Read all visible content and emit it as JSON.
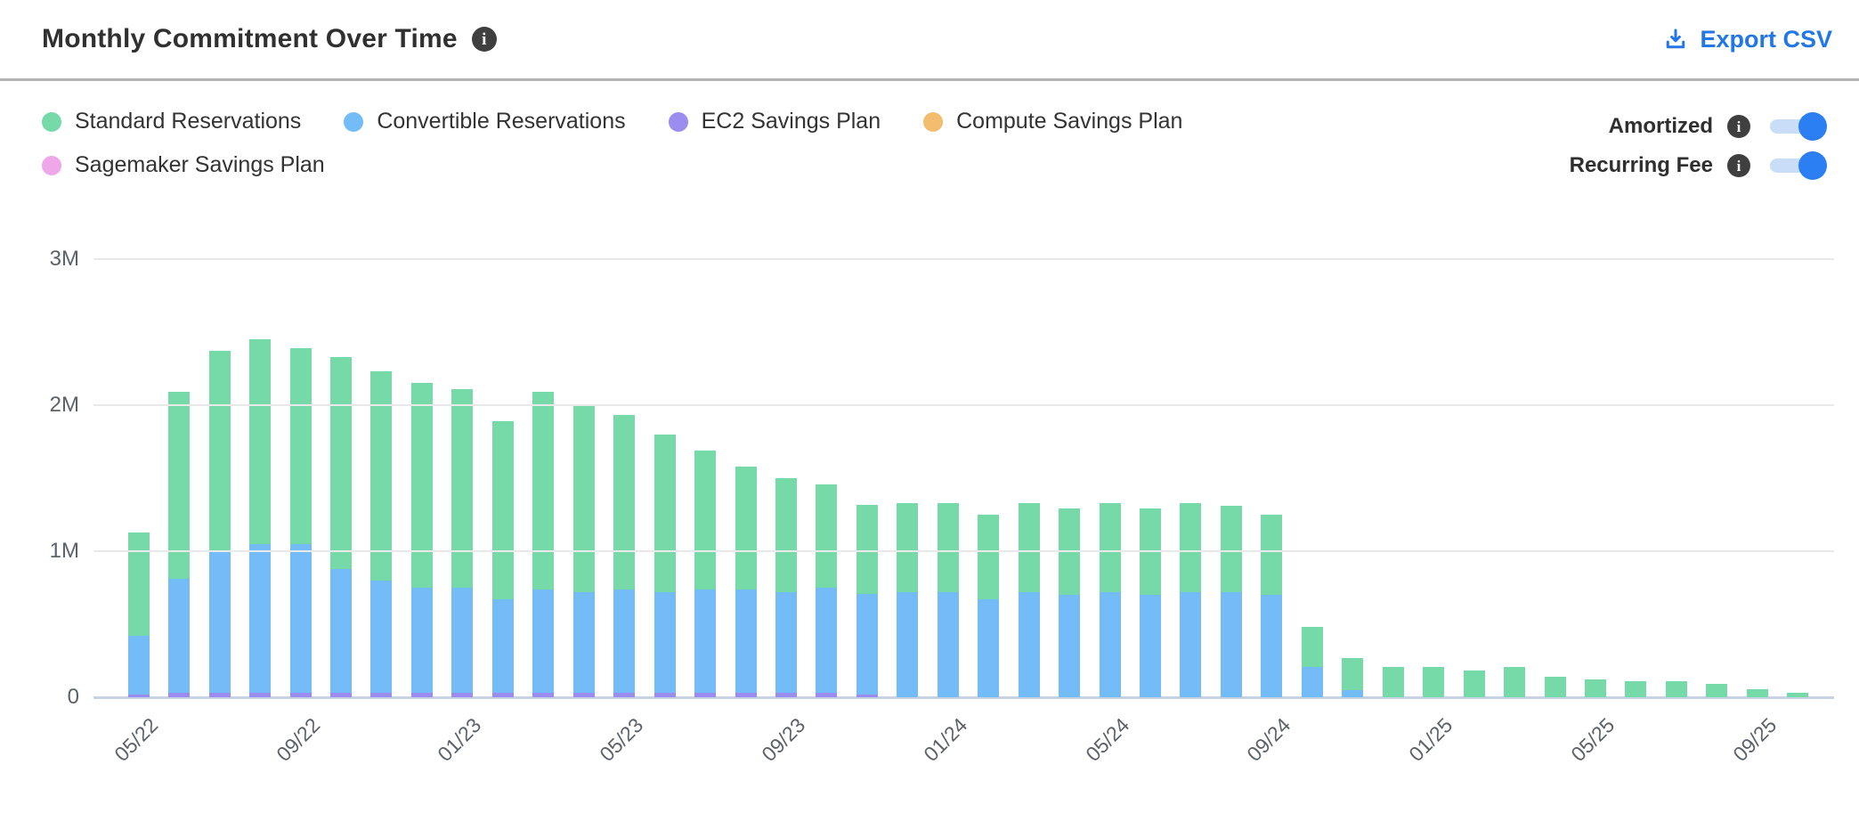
{
  "header": {
    "title": "Monthly Commitment Over Time",
    "export_label": "Export CSV",
    "export_icon": "download-icon",
    "title_info_icon": "info-icon"
  },
  "legend": [
    {
      "label": "Standard Reservations",
      "color": "#75d9a8"
    },
    {
      "label": "Convertible Reservations",
      "color": "#74bcf8"
    },
    {
      "label": "EC2 Savings Plan",
      "color": "#9b8cf0"
    },
    {
      "label": "Compute Savings Plan",
      "color": "#f4bc6d"
    },
    {
      "label": "Sagemaker Savings Plan",
      "color": "#efa7e9"
    }
  ],
  "toggles": [
    {
      "label": "Amortized",
      "state": "on"
    },
    {
      "label": "Recurring Fee",
      "state": "on"
    }
  ],
  "colors": {
    "grid": "#e9e9e9",
    "baseline": "#c9d2e4",
    "axis_text": "#5b6269",
    "link": "#2277e5",
    "toggle_track": "#c9ddf8",
    "toggle_knob": "#2b7ff2",
    "info_icon_bg": "#3f3f3f",
    "divider": "#b2b2b2"
  },
  "chart_data": {
    "type": "bar",
    "stacked": true,
    "unit": "M",
    "ylim_m": [
      0,
      3
    ],
    "grid": true,
    "y_ticks": [
      {
        "label": "3M",
        "value_m": 3
      },
      {
        "label": "2M",
        "value_m": 2
      },
      {
        "label": "1M",
        "value_m": 1
      },
      {
        "label": "0",
        "value_m": 0
      }
    ],
    "categories": [
      "05/22",
      "06/22",
      "07/22",
      "08/22",
      "09/22",
      "10/22",
      "11/22",
      "12/22",
      "01/23",
      "02/23",
      "03/23",
      "04/23",
      "05/23",
      "06/23",
      "07/23",
      "08/23",
      "09/23",
      "10/23",
      "11/23",
      "12/23",
      "01/24",
      "02/24",
      "03/24",
      "04/24",
      "05/24",
      "06/24",
      "07/24",
      "08/24",
      "09/24",
      "10/24",
      "11/24",
      "12/24",
      "01/25",
      "02/25",
      "03/25",
      "04/25",
      "05/25",
      "06/25",
      "07/25",
      "08/25",
      "09/25",
      "10/25"
    ],
    "x_ticks": [
      {
        "i": 0,
        "label": "05/22"
      },
      {
        "i": 4,
        "label": "09/22"
      },
      {
        "i": 8,
        "label": "01/23"
      },
      {
        "i": 12,
        "label": "05/23"
      },
      {
        "i": 16,
        "label": "09/23"
      },
      {
        "i": 20,
        "label": "01/24"
      },
      {
        "i": 24,
        "label": "05/24"
      },
      {
        "i": 28,
        "label": "09/24"
      },
      {
        "i": 32,
        "label": "01/25"
      },
      {
        "i": 36,
        "label": "05/25"
      },
      {
        "i": 40,
        "label": "09/25"
      }
    ],
    "series": [
      {
        "name": "EC2 Savings Plan",
        "color": "#9b8cf0",
        "values": [
          0.02,
          0.03,
          0.03,
          0.03,
          0.03,
          0.03,
          0.03,
          0.03,
          0.03,
          0.03,
          0.03,
          0.03,
          0.03,
          0.03,
          0.03,
          0.03,
          0.03,
          0.03,
          0.02,
          0,
          0,
          0,
          0,
          0,
          0,
          0,
          0,
          0,
          0,
          0,
          0,
          0,
          0,
          0,
          0,
          0,
          0,
          0,
          0,
          0,
          0,
          0
        ]
      },
      {
        "name": "Convertible Reservations",
        "color": "#74bcf8",
        "values": [
          0.4,
          0.78,
          0.97,
          1.02,
          1.02,
          0.85,
          0.77,
          0.72,
          0.72,
          0.64,
          0.71,
          0.69,
          0.71,
          0.69,
          0.71,
          0.71,
          0.69,
          0.72,
          0.69,
          0.72,
          0.72,
          0.67,
          0.72,
          0.7,
          0.72,
          0.7,
          0.72,
          0.72,
          0.7,
          0.21,
          0.05,
          0,
          0,
          0,
          0,
          0,
          0,
          0,
          0,
          0,
          0,
          0
        ]
      },
      {
        "name": "Standard Reservations",
        "color": "#75d9a8",
        "values": [
          0.71,
          1.28,
          1.37,
          1.4,
          1.34,
          1.45,
          1.43,
          1.4,
          1.36,
          1.22,
          1.35,
          1.28,
          1.19,
          1.08,
          0.95,
          0.84,
          0.78,
          0.71,
          0.61,
          0.61,
          0.61,
          0.58,
          0.61,
          0.59,
          0.61,
          0.59,
          0.61,
          0.59,
          0.55,
          0.27,
          0.22,
          0.21,
          0.21,
          0.18,
          0.21,
          0.14,
          0.12,
          0.11,
          0.11,
          0.09,
          0.055,
          0.03
        ]
      },
      {
        "name": "Compute Savings Plan",
        "color": "#f4bc6d",
        "values": [
          0,
          0,
          0,
          0,
          0,
          0,
          0,
          0,
          0,
          0,
          0,
          0,
          0,
          0,
          0,
          0,
          0,
          0,
          0,
          0,
          0,
          0,
          0,
          0,
          0,
          0,
          0,
          0,
          0,
          0,
          0,
          0,
          0,
          0,
          0,
          0,
          0,
          0,
          0,
          0,
          0,
          0
        ]
      },
      {
        "name": "Sagemaker Savings Plan",
        "color": "#efa7e9",
        "values": [
          0,
          0,
          0,
          0,
          0,
          0,
          0,
          0,
          0,
          0,
          0,
          0,
          0,
          0,
          0,
          0,
          0,
          0,
          0,
          0,
          0,
          0,
          0,
          0,
          0,
          0,
          0,
          0,
          0,
          0,
          0,
          0,
          0,
          0,
          0,
          0,
          0,
          0,
          0,
          0,
          0,
          0
        ]
      }
    ]
  }
}
